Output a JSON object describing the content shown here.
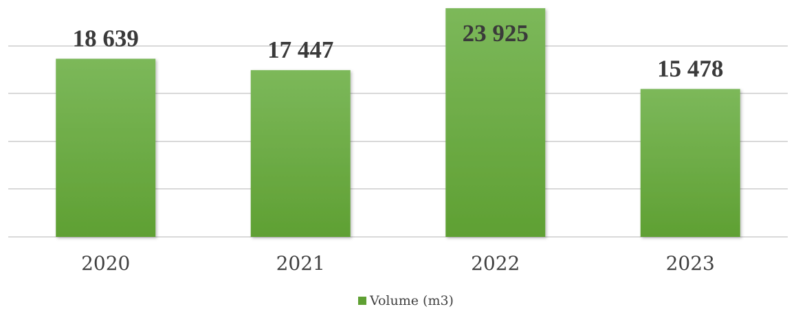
{
  "chart_data": {
    "type": "bar",
    "categories": [
      "2020",
      "2021",
      "2022",
      "2023"
    ],
    "series": [
      {
        "name": "Volume (m3)",
        "values": [
          18639,
          17447,
          23925,
          15478
        ],
        "labels": [
          "18 639",
          "17 447",
          "23 925",
          "15 478"
        ]
      }
    ],
    "title": "",
    "xlabel": "",
    "ylabel": "",
    "ylim": [
      0,
      25000
    ],
    "grid": true,
    "legend": "bottom-center",
    "colors": {
      "bar_top": "#7cb85a",
      "bar_bottom": "#5fa033",
      "grid": "#d9d9d9"
    }
  }
}
